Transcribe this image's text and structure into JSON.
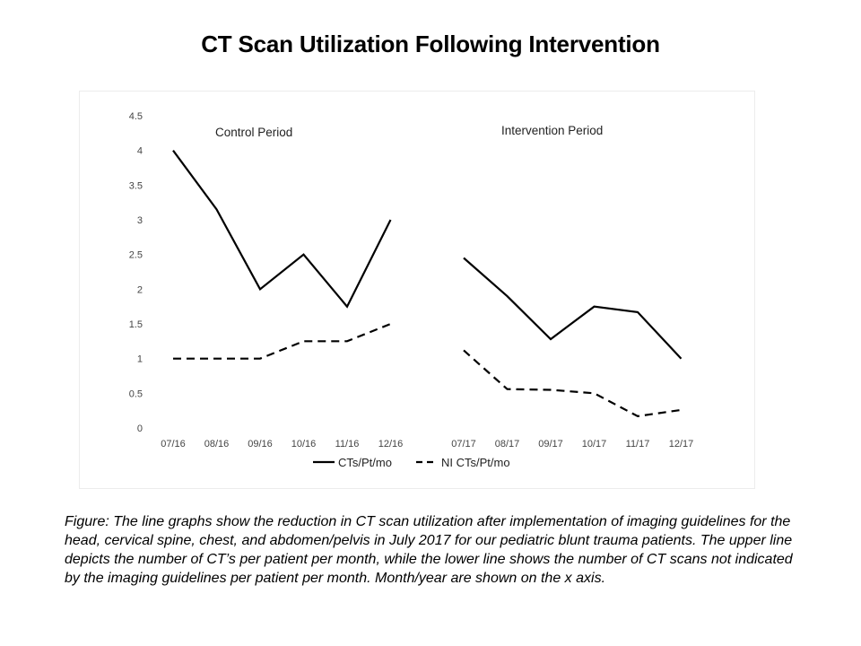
{
  "title": "CT Scan Utilization Following Intervention",
  "caption": "Figure: The line graphs show the reduction in CT scan utilization after implementation of imaging guidelines for the head, cervical spine, chest, and abdomen/pelvis in July 2017 for our pediatric blunt trauma patients. The upper line depicts the number of CT’s per patient per month, while the lower line shows the number of CT scans not indicated by the imaging guidelines per patient per month. Month/year are shown on the x axis.",
  "chart_data": {
    "type": "line",
    "title": "",
    "xlabel": "",
    "ylabel": "",
    "ylim": [
      0,
      4.5
    ],
    "yticks": [
      "0",
      "0.5",
      "1",
      "1.5",
      "2",
      "2.5",
      "3",
      "3.5",
      "4",
      "4.5"
    ],
    "grid": false,
    "legend_position": "bottom",
    "periods": [
      {
        "label": "Control Period",
        "categories": [
          "07/16",
          "08/16",
          "09/16",
          "10/16",
          "11/16",
          "12/16"
        ],
        "series": [
          {
            "name": "CTs/Pt/mo",
            "style": "solid",
            "values": [
              4.0,
              3.15,
              2.0,
              2.5,
              1.75,
              3.0
            ]
          },
          {
            "name": "NI CTs/Pt/mo",
            "style": "dashed",
            "values": [
              1.0,
              1.0,
              1.0,
              1.25,
              1.25,
              1.5
            ]
          }
        ]
      },
      {
        "label": "Intervention Period",
        "categories": [
          "07/17",
          "08/17",
          "09/17",
          "10/17",
          "11/17",
          "12/17"
        ],
        "series": [
          {
            "name": "CTs/Pt/mo",
            "style": "solid",
            "values": [
              2.45,
              1.9,
              1.28,
              1.75,
              1.67,
              1.0
            ]
          },
          {
            "name": "NI CTs/Pt/mo",
            "style": "dashed",
            "values": [
              1.12,
              0.56,
              0.55,
              0.5,
              0.17,
              0.26
            ]
          }
        ]
      }
    ],
    "legend": [
      {
        "name": "CTs/Pt/mo",
        "style": "solid"
      },
      {
        "name": "NI CTs/Pt/mo",
        "style": "dashed"
      }
    ],
    "line_color": "#000000"
  }
}
